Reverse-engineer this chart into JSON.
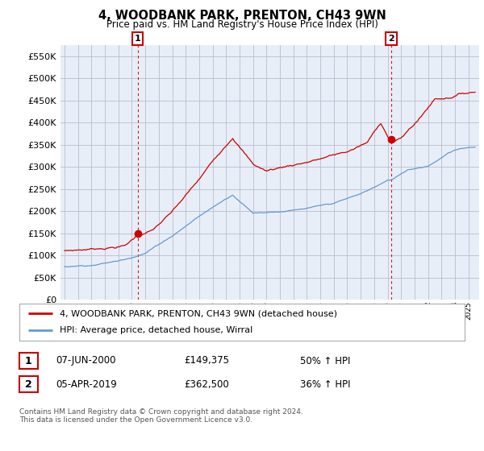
{
  "title": "4, WOODBANK PARK, PRENTON, CH43 9WN",
  "subtitle": "Price paid vs. HM Land Registry's House Price Index (HPI)",
  "ylabel_values": [
    "£0",
    "£50K",
    "£100K",
    "£150K",
    "£200K",
    "£250K",
    "£300K",
    "£350K",
    "£400K",
    "£450K",
    "£500K",
    "£550K"
  ],
  "ylim": [
    0,
    575000
  ],
  "yticks": [
    0,
    50000,
    100000,
    150000,
    200000,
    250000,
    300000,
    350000,
    400000,
    450000,
    500000,
    550000
  ],
  "marker1_x": 2000.44,
  "marker1_y": 149375,
  "marker2_x": 2019.26,
  "marker2_y": 362500,
  "marker1_date": "07-JUN-2000",
  "marker1_price": "£149,375",
  "marker1_hpi": "50% ↑ HPI",
  "marker2_date": "05-APR-2019",
  "marker2_price": "£362,500",
  "marker2_hpi": "36% ↑ HPI",
  "red_line_color": "#cc0000",
  "blue_line_color": "#6699cc",
  "marker_box_color": "#cc0000",
  "grid_color": "#bbbbcc",
  "chart_bg": "#e8eef8",
  "background_color": "#ffffff",
  "legend_label_red": "4, WOODBANK PARK, PRENTON, CH43 9WN (detached house)",
  "legend_label_blue": "HPI: Average price, detached house, Wirral",
  "footer": "Contains HM Land Registry data © Crown copyright and database right 2024.\nThis data is licensed under the Open Government Licence v3.0.",
  "xmin": 1994.7,
  "xmax": 2025.8
}
